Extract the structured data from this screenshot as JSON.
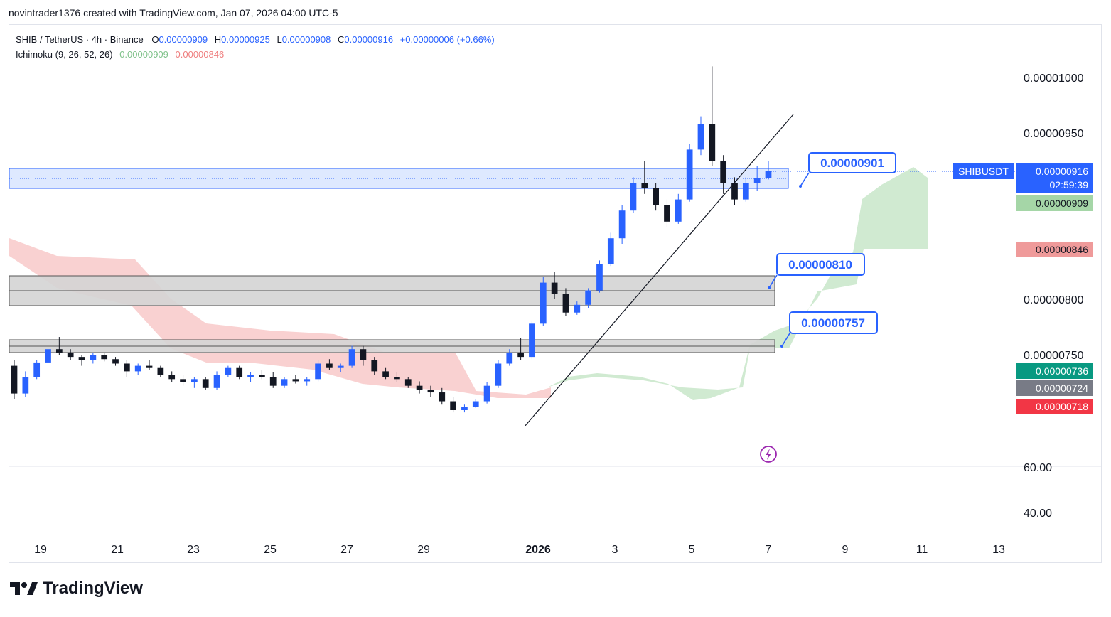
{
  "header": {
    "attribution": "novintrader1376 created with TradingView.com, Jan 07, 2026 04:00 UTC-5"
  },
  "legend": {
    "symbol": "SHIB / TetherUS · 4h · Binance",
    "o_label": "O",
    "o": "0.00000909",
    "h_label": "H",
    "h": "0.00000925",
    "l_label": "L",
    "l": "0.00000908",
    "c_label": "C",
    "c": "0.00000916",
    "change": "+0.00000006 (+0.66%)",
    "indicator": "Ichimoku (9, 26, 52, 26)",
    "ichi_a": "0.00000909",
    "ichi_b": "0.00000846"
  },
  "price_axis": {
    "ticks": [
      "0.00001000",
      "0.00000950",
      "0.00000800",
      "0.00000750"
    ],
    "osc_ticks": [
      "60.00",
      "40.00"
    ]
  },
  "time_axis": {
    "ticks": [
      "19",
      "21",
      "23",
      "25",
      "27",
      "29",
      "2026",
      "3",
      "5",
      "7",
      "9",
      "11",
      "13"
    ]
  },
  "tags": {
    "symbol": "SHIBUSDT",
    "last_price": "0.00000916",
    "countdown": "02:59:39",
    "ichi_a": "0.00000909",
    "ichi_b": "0.00000846",
    "p736": "0.00000736",
    "p724": "0.00000724",
    "p718": "0.00000718"
  },
  "callouts": {
    "c901": "0.00000901",
    "c810": "0.00000810",
    "c757": "0.00000757"
  },
  "colors": {
    "up": "#2962ff",
    "down": "#131722",
    "cloud_bull": "#c8e6c9",
    "cloud_bear": "#f8c9c9",
    "zone_blue": "#d6e4ff",
    "zone_gray": "#d4d4d4",
    "tag_blue": "#2962ff",
    "tag_green": "#a5d6a7",
    "tag_red": "#ef9a9a",
    "tag_teal": "#089981",
    "tag_gray": "#787b86",
    "tag_crimson": "#f23645"
  },
  "brand": {
    "name": "TradingView"
  },
  "chart_data": {
    "type": "candlestick",
    "symbol": "SHIBUSDT",
    "timeframe": "4h",
    "x_ticks": [
      "19",
      "21",
      "23",
      "25",
      "27",
      "29",
      "2026",
      "3",
      "5",
      "7",
      "9",
      "11",
      "13"
    ],
    "y_ticks": [
      7.5e-06,
      8e-06,
      9.5e-06,
      1e-05
    ],
    "ylim": [
      6.85e-06,
      1.06e-05
    ],
    "ohlc_approx": [
      [
        7.4,
        7.45,
        7.1,
        7.15
      ],
      [
        7.15,
        7.35,
        7.12,
        7.3
      ],
      [
        7.3,
        7.45,
        7.28,
        7.43
      ],
      [
        7.43,
        7.6,
        7.4,
        7.55
      ],
      [
        7.55,
        7.66,
        7.5,
        7.52
      ],
      [
        7.52,
        7.55,
        7.45,
        7.48
      ],
      [
        7.48,
        7.5,
        7.4,
        7.45
      ],
      [
        7.45,
        7.52,
        7.42,
        7.5
      ],
      [
        7.5,
        7.52,
        7.44,
        7.46
      ],
      [
        7.46,
        7.48,
        7.4,
        7.42
      ],
      [
        7.42,
        7.45,
        7.3,
        7.35
      ],
      [
        7.35,
        7.42,
        7.32,
        7.4
      ],
      [
        7.4,
        7.45,
        7.36,
        7.38
      ],
      [
        7.38,
        7.4,
        7.3,
        7.32
      ],
      [
        7.32,
        7.35,
        7.25,
        7.28
      ],
      [
        7.28,
        7.32,
        7.22,
        7.25
      ],
      [
        7.25,
        7.3,
        7.2,
        7.28
      ],
      [
        7.28,
        7.3,
        7.18,
        7.2
      ],
      [
        7.2,
        7.35,
        7.18,
        7.32
      ],
      [
        7.32,
        7.4,
        7.3,
        7.38
      ],
      [
        7.38,
        7.4,
        7.28,
        7.3
      ],
      [
        7.3,
        7.34,
        7.25,
        7.32
      ],
      [
        7.32,
        7.36,
        7.28,
        7.3
      ],
      [
        7.3,
        7.34,
        7.2,
        7.22
      ],
      [
        7.22,
        7.3,
        7.2,
        7.28
      ],
      [
        7.28,
        7.32,
        7.24,
        7.26
      ],
      [
        7.26,
        7.3,
        7.22,
        7.28
      ],
      [
        7.28,
        7.45,
        7.26,
        7.42
      ],
      [
        7.42,
        7.46,
        7.36,
        7.38
      ],
      [
        7.38,
        7.42,
        7.34,
        7.4
      ],
      [
        7.4,
        7.58,
        7.38,
        7.55
      ],
      [
        7.55,
        7.58,
        7.4,
        7.45
      ],
      [
        7.45,
        7.48,
        7.32,
        7.35
      ],
      [
        7.35,
        7.38,
        7.28,
        7.3
      ],
      [
        7.3,
        7.34,
        7.25,
        7.28
      ],
      [
        7.28,
        7.3,
        7.2,
        7.22
      ],
      [
        7.22,
        7.26,
        7.15,
        7.18
      ],
      [
        7.18,
        7.22,
        7.12,
        7.16
      ],
      [
        7.16,
        7.2,
        7.05,
        7.08
      ],
      [
        7.08,
        7.12,
        6.98,
        7.0
      ],
      [
        7.0,
        7.05,
        6.98,
        7.03
      ],
      [
        7.03,
        7.1,
        7.02,
        7.08
      ],
      [
        7.08,
        7.25,
        7.06,
        7.22
      ],
      [
        7.22,
        7.45,
        7.2,
        7.42
      ],
      [
        7.42,
        7.55,
        7.4,
        7.52
      ],
      [
        7.52,
        7.65,
        7.45,
        7.48
      ],
      [
        7.48,
        7.8,
        7.46,
        7.78
      ],
      [
        7.78,
        8.2,
        7.76,
        8.15
      ],
      [
        8.15,
        8.25,
        8.0,
        8.05
      ],
      [
        8.05,
        8.1,
        7.85,
        7.88
      ],
      [
        7.88,
        7.98,
        7.86,
        7.95
      ],
      [
        7.95,
        8.1,
        7.92,
        8.08
      ],
      [
        8.08,
        8.35,
        8.06,
        8.32
      ],
      [
        8.32,
        8.6,
        8.3,
        8.55
      ],
      [
        8.55,
        8.85,
        8.5,
        8.8
      ],
      [
        8.8,
        9.1,
        8.78,
        9.05
      ],
      [
        9.05,
        9.25,
        8.95,
        9.0
      ],
      [
        9.0,
        9.05,
        8.8,
        8.85
      ],
      [
        8.85,
        8.9,
        8.65,
        8.7
      ],
      [
        8.7,
        8.95,
        8.68,
        8.9
      ],
      [
        8.9,
        9.4,
        8.88,
        9.35
      ],
      [
        9.35,
        9.65,
        9.3,
        9.58
      ],
      [
        9.58,
        10.1,
        9.2,
        9.25
      ],
      [
        9.25,
        9.3,
        8.95,
        9.05
      ],
      [
        9.05,
        9.1,
        8.85,
        8.9
      ],
      [
        8.9,
        9.1,
        8.88,
        9.05
      ],
      [
        9.05,
        9.2,
        8.98,
        9.09
      ],
      [
        9.09,
        9.25,
        9.08,
        9.16
      ]
    ],
    "ichimoku": {
      "params": "9, 26, 52, 26",
      "span_a_last": 9.09e-06,
      "span_b_last": 8.46e-06
    },
    "horizontal_zones": [
      {
        "level": 9.01e-06,
        "color": "blue"
      },
      {
        "level": 8.1e-06,
        "color": "gray"
      },
      {
        "level": 7.57e-06,
        "color": "gray"
      }
    ],
    "trendline": "ascending support from 2026 low to Jan 7",
    "last_price": 9.16e-06,
    "oscillator_ticks": [
      60,
      40
    ]
  }
}
